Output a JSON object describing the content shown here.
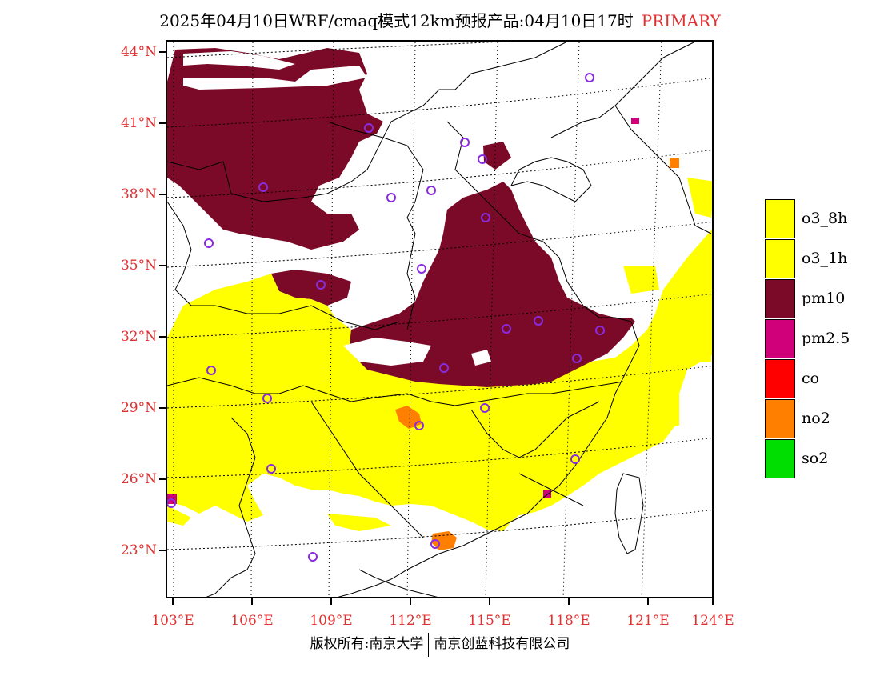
{
  "title": {
    "text": "2025年04月10日WRF/cmaq模式12km预报产品:04月10日17时",
    "tag": "PRIMARY"
  },
  "axes": {
    "lat_labels": [
      "44°N",
      "41°N",
      "38°N",
      "35°N",
      "32°N",
      "29°N",
      "26°N",
      "23°N"
    ],
    "lon_labels": [
      "103°E",
      "106°E",
      "109°E",
      "112°E",
      "115°E",
      "118°E",
      "121°E",
      "124°E"
    ]
  },
  "legend": [
    {
      "label": "o3_8h",
      "color": "#ffff00"
    },
    {
      "label": "o3_1h",
      "color": "#ffff00"
    },
    {
      "label": "pm10",
      "color": "#7a0a28"
    },
    {
      "label": "pm2.5",
      "color": "#d0007a"
    },
    {
      "label": "co",
      "color": "#ff0000"
    },
    {
      "label": "no2",
      "color": "#ff7f00"
    },
    {
      "label": "so2",
      "color": "#00dd00"
    }
  ],
  "footer": {
    "left": "版权所有:南京大学",
    "right": "南京创蓝科技有限公司"
  }
}
